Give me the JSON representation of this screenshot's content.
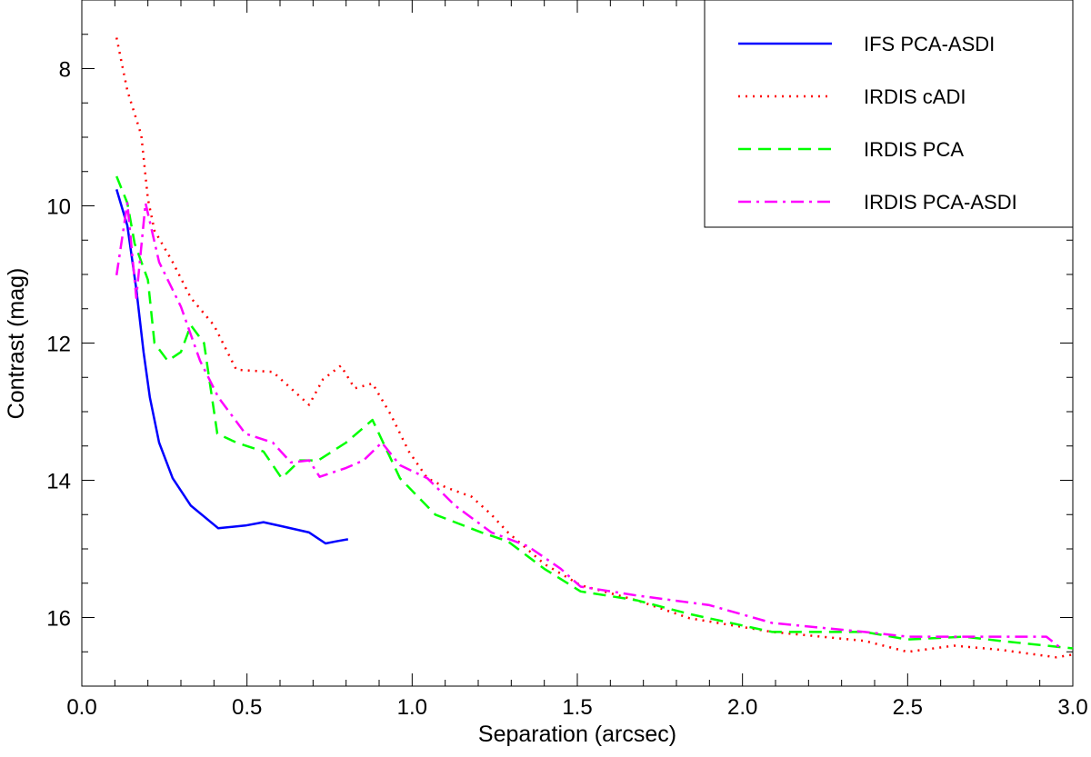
{
  "chart_data": {
    "type": "line",
    "title": "",
    "xlabel": "Separation (arcsec)",
    "ylabel": "Contrast (mag)",
    "xlim": [
      0.0,
      3.0
    ],
    "ylim": [
      17.0,
      7.0
    ],
    "y_inverted": true,
    "xticks": [
      "0.0",
      "0.5",
      "1.0",
      "1.5",
      "2.0",
      "2.5",
      "3.0"
    ],
    "yticks": [
      "8",
      "10",
      "12",
      "14",
      "16"
    ],
    "grid": false,
    "legend_position": "top-right",
    "series": [
      {
        "name": "IFS PCA-ASDI",
        "color": "#0000ff",
        "style": "solid",
        "x": [
          0.105,
          0.138,
          0.165,
          0.187,
          0.206,
          0.234,
          0.275,
          0.33,
          0.413,
          0.495,
          0.55,
          0.606,
          0.688,
          0.738,
          0.77,
          0.806
        ],
        "y": [
          9.76,
          10.29,
          11.21,
          12.13,
          12.79,
          13.45,
          13.97,
          14.37,
          14.7,
          14.66,
          14.61,
          14.67,
          14.76,
          14.92,
          14.89,
          14.86
        ]
      },
      {
        "name": "IRDIS cADI",
        "color": "#ff0000",
        "style": "dotted",
        "x": [
          0.105,
          0.138,
          0.18,
          0.2,
          0.22,
          0.275,
          0.33,
          0.4,
          0.468,
          0.578,
          0.633,
          0.688,
          0.73,
          0.784,
          0.826,
          0.88,
          0.936,
          0.99,
          1.046,
          1.1,
          1.18,
          1.24,
          1.29,
          1.4,
          1.51,
          1.68,
          1.84,
          2.09,
          2.37,
          2.5,
          2.64,
          2.78,
          2.95,
          3.0
        ],
        "y": [
          7.55,
          8.32,
          8.97,
          9.9,
          10.36,
          10.82,
          11.34,
          11.74,
          12.39,
          12.42,
          12.66,
          12.9,
          12.53,
          12.33,
          12.66,
          12.59,
          13.05,
          13.58,
          13.97,
          14.1,
          14.24,
          14.5,
          14.76,
          15.22,
          15.53,
          15.75,
          16.01,
          16.21,
          16.34,
          16.5,
          16.41,
          16.47,
          16.58,
          16.54
        ]
      },
      {
        "name": "IRDIS PCA",
        "color": "#00ff00",
        "style": "dashed",
        "x": [
          0.105,
          0.138,
          0.16,
          0.2,
          0.22,
          0.26,
          0.3,
          0.33,
          0.37,
          0.41,
          0.468,
          0.55,
          0.605,
          0.66,
          0.716,
          0.8,
          0.88,
          0.963,
          1.07,
          1.21,
          1.29,
          1.4,
          1.51,
          1.68,
          1.84,
          2.09,
          2.37,
          2.5,
          2.67,
          2.78,
          2.92,
          3.0
        ],
        "y": [
          9.57,
          9.96,
          10.55,
          11.08,
          12.0,
          12.26,
          12.13,
          11.74,
          12.0,
          13.32,
          13.45,
          13.58,
          13.97,
          13.71,
          13.71,
          13.45,
          13.12,
          13.97,
          14.5,
          14.76,
          14.89,
          15.29,
          15.62,
          15.75,
          15.95,
          16.21,
          16.21,
          16.32,
          16.28,
          16.34,
          16.41,
          16.45
        ]
      },
      {
        "name": "IRDIS PCA-ASDI",
        "color": "#ff00ff",
        "style": "dashdot",
        "x": [
          0.105,
          0.138,
          0.165,
          0.193,
          0.234,
          0.3,
          0.358,
          0.413,
          0.495,
          0.578,
          0.633,
          0.688,
          0.72,
          0.8,
          0.853,
          0.908,
          0.963,
          1.046,
          1.13,
          1.24,
          1.35,
          1.45,
          1.51,
          1.68,
          1.9,
          2.09,
          2.37,
          2.5,
          2.73,
          2.92,
          2.97
        ],
        "y": [
          11.01,
          9.96,
          11.34,
          9.96,
          10.82,
          11.47,
          12.26,
          12.79,
          13.32,
          13.45,
          13.74,
          13.71,
          13.95,
          13.82,
          13.71,
          13.45,
          13.78,
          13.97,
          14.37,
          14.76,
          14.96,
          15.29,
          15.55,
          15.68,
          15.82,
          16.08,
          16.21,
          16.28,
          16.28,
          16.28,
          16.47
        ]
      }
    ]
  }
}
